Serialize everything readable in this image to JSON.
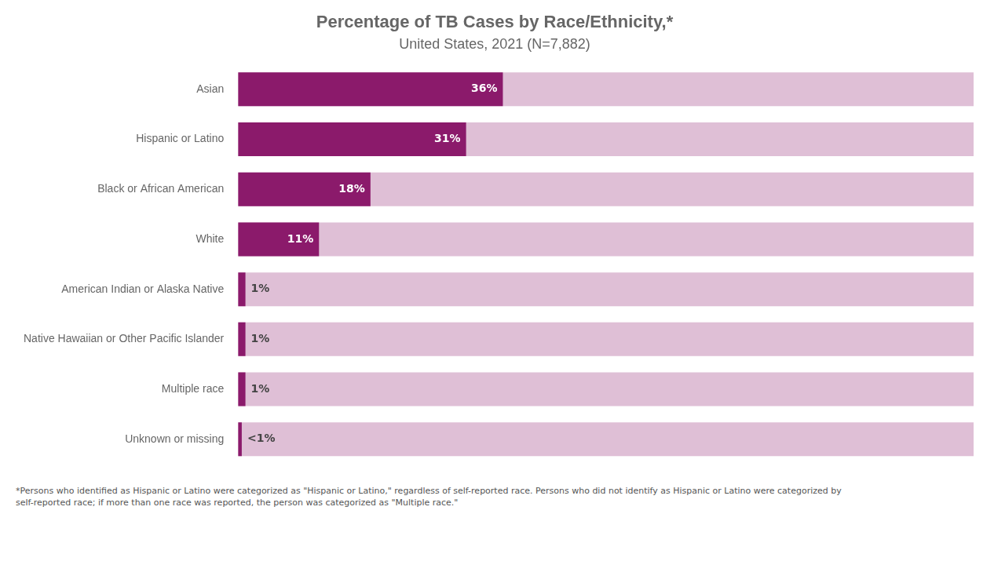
{
  "chart_data": {
    "type": "bar",
    "orientation": "horizontal",
    "title": "Percentage of TB Cases by Race/Ethnicity,*",
    "subtitle": "United States, 2021 (N=7,882)",
    "categories": [
      "Asian",
      "Hispanic or Latino",
      "Black or African American",
      "White",
      "American Indian or Alaska Native",
      "Native Hawaiian or Other Pacific Islander",
      "Multiple race",
      "Unknown or missing"
    ],
    "values": [
      36,
      31,
      18,
      11,
      1,
      1,
      1,
      0.5
    ],
    "value_labels": [
      "36%",
      "31%",
      "18%",
      "11%",
      "1%",
      "1%",
      "1%",
      "<1%"
    ],
    "data_labels": true,
    "color": "#8B1A6B",
    "xlim": [
      0,
      100
    ],
    "grid": false,
    "tick_labels": "y",
    "annotations": [
      "*Persons who identified as Hispanic or Latino were categorized as \"Hispanic or Latino,\" regardless of self-reported race. Persons who did not identify as Hispanic or Latino were categorized by\nself-reported race; if more than one race was reported, the person was categorized as \"Multiple race.\""
    ]
  }
}
